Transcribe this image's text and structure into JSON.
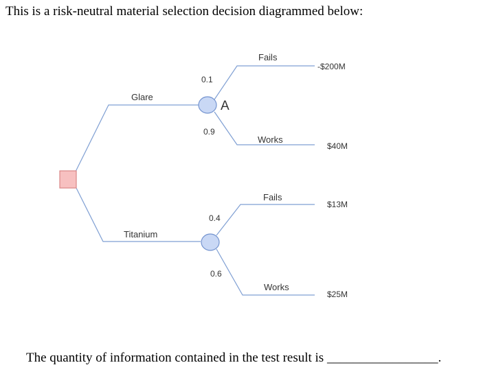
{
  "intro_text": "This is a risk-neutral material selection decision diagrammed below:",
  "question_text": "The quantity of information contained in the test result is",
  "answer_blank": "_________________.",
  "decision_tree": {
    "alternatives": [
      {
        "label": "Glare",
        "chance_node_label": "A",
        "outcomes": [
          {
            "label": "Fails",
            "probability": "0.1",
            "payoff": "-$200M"
          },
          {
            "label": "Works",
            "probability": "0.9",
            "payoff": "$40M"
          }
        ]
      },
      {
        "label": "Titanium",
        "chance_node_label": "",
        "outcomes": [
          {
            "label": "Fails",
            "probability": "0.4",
            "payoff": "$13M"
          },
          {
            "label": "Works",
            "probability": "0.6",
            "payoff": "$25M"
          }
        ]
      }
    ],
    "colors": {
      "line": "#7f9fd3",
      "decision_fill": "#f7c0c0",
      "decision_stroke": "#d98686",
      "chance_fill": "#c9d8f5",
      "chance_stroke": "#7393cf"
    }
  }
}
